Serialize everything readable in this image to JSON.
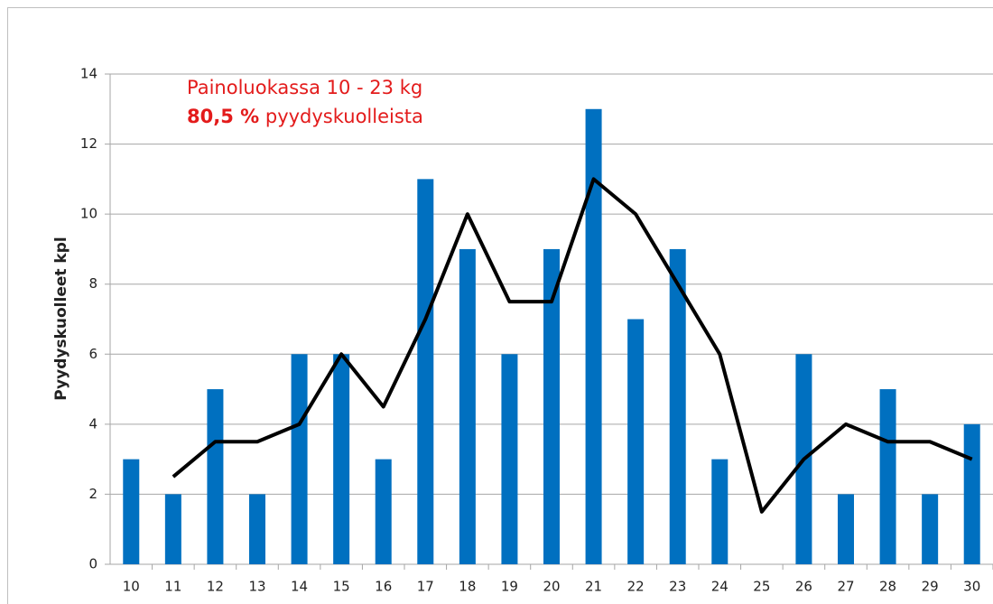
{
  "chart_data": {
    "type": "bar-line",
    "annotations": [
      "Painoluokassa 10 - 23 kg",
      "80,5 %",
      "pyydyskuolleista"
    ],
    "y_label": "Pyydyskuolleet kpl",
    "categories": [
      "10",
      "11",
      "12",
      "13",
      "14",
      "15",
      "16",
      "17",
      "18",
      "19",
      "20",
      "21",
      "22",
      "23",
      "24",
      "25",
      "26",
      "27",
      "28",
      "29",
      "30"
    ],
    "series": [
      {
        "type": "bar",
        "color": "#0070c0",
        "values": [
          3,
          2,
          5,
          2,
          6,
          6,
          3,
          11,
          9,
          6,
          9,
          13,
          7,
          9,
          3,
          0,
          6,
          2,
          5,
          2,
          4
        ]
      },
      {
        "type": "line",
        "color": "#000000",
        "values": [
          null,
          2.5,
          3.5,
          3.5,
          4,
          6,
          4.5,
          7,
          10,
          7.5,
          7.5,
          11,
          10,
          8,
          6,
          1.5,
          3,
          4,
          3.5,
          3.5,
          3
        ]
      }
    ],
    "ylim": [
      0,
      14
    ],
    "yticks": [
      0,
      2,
      4,
      6,
      8,
      10,
      12,
      14
    ],
    "grid": true
  }
}
